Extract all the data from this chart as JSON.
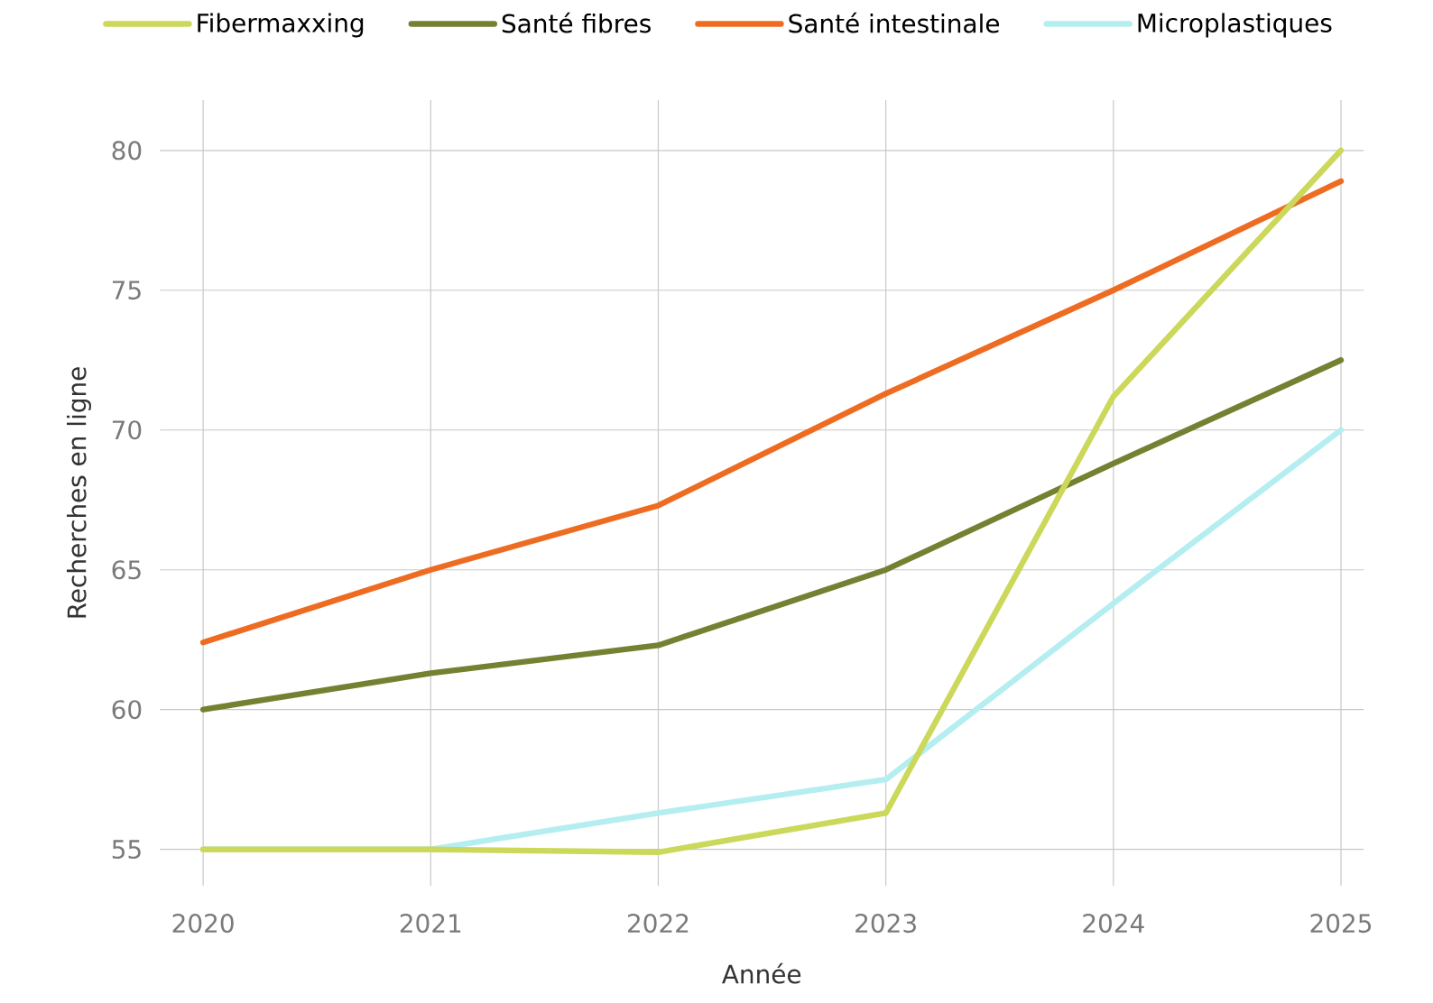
{
  "chart_data": {
    "type": "line",
    "xlabel": "Année",
    "ylabel": "Recherches en ligne",
    "x": [
      2020,
      2021,
      2022,
      2023,
      2024,
      2025
    ],
    "series": [
      {
        "name": "Fibermaxxing",
        "color": "#cbd85a",
        "values": [
          55,
          55,
          54.9,
          56.3,
          71.2,
          80
        ]
      },
      {
        "name": "Santé fibres",
        "color": "#748132",
        "values": [
          60,
          61.3,
          62.3,
          65,
          68.8,
          72.5
        ]
      },
      {
        "name": "Santé intestinale",
        "color": "#ee6c22",
        "values": [
          62.4,
          65,
          67.3,
          71.3,
          75,
          78.9
        ]
      },
      {
        "name": "Microplastiques",
        "color": "#b4eef0",
        "values": [
          55,
          55,
          56.3,
          57.5,
          63.8,
          70
        ]
      }
    ],
    "xlim": [
      2019.81,
      2025.1
    ],
    "ylim": [
      53.7,
      81.8
    ],
    "xticks": [
      2020,
      2021,
      2022,
      2023,
      2024,
      2025
    ],
    "yticks": [
      55,
      60,
      65,
      70,
      75,
      80
    ],
    "grid": true,
    "legend": "top",
    "marker": "none",
    "line_style": "solid"
  }
}
